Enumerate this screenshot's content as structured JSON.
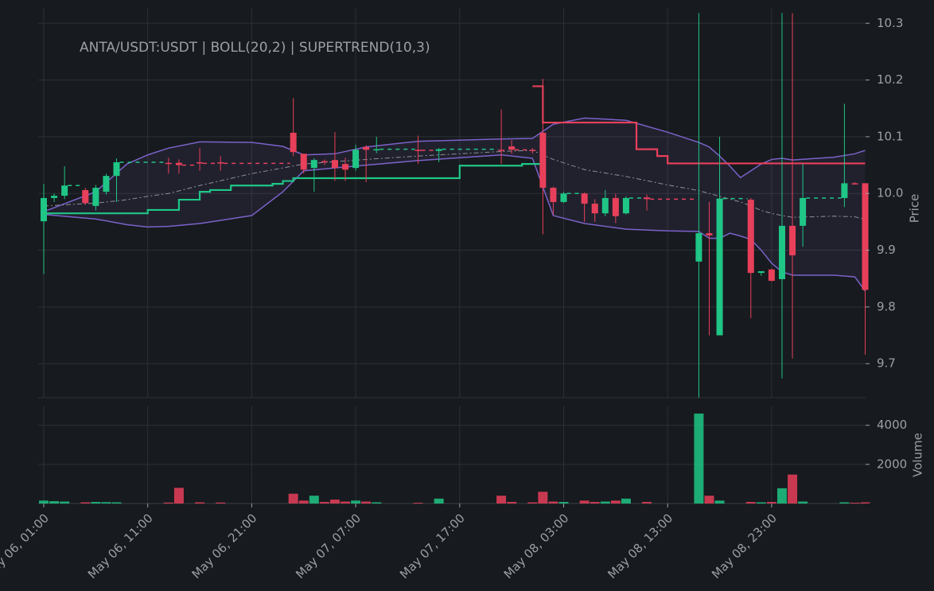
{
  "chart_data": {
    "type": "candlestick",
    "title": "ANTA/USDT:USDT | BOLL(20,2) | SUPERTREND(10,3)",
    "y_label": "Price",
    "y2_label": "Volume",
    "ylim": [
      9.64,
      10.32
    ],
    "yticks": [
      9.7,
      9.8,
      9.9,
      {
        "value": 10,
        "label": "10.0"
      },
      10.1,
      10.2,
      10.3
    ],
    "volume_ylim": [
      0,
      4800
    ],
    "volume_yticks": [
      2000,
      4000
    ],
    "xticks": [
      "May 06, 01:00",
      "May 06, 11:00",
      "May 06, 21:00",
      "May 07, 07:00",
      "May 07, 17:00",
      "May 08, 03:00",
      "May 08, 13:00",
      "May 08, 23:00"
    ],
    "grid": true,
    "up_color": "#1fc686",
    "down_color": "#e8405a",
    "candles": {
      "x": [
        "May 06, 01:00",
        "May 06, 02:00",
        "May 06, 03:00",
        "May 06, 05:00",
        "May 06, 06:00",
        "May 06, 07:00",
        "May 06, 08:00",
        "May 06, 13:00",
        "May 06, 14:00",
        "May 06, 16:00",
        "May 06, 18:00",
        "May 07, 01:00",
        "May 07, 02:00",
        "May 07, 03:00",
        "May 07, 04:00",
        "May 07, 05:00",
        "May 07, 06:00",
        "May 07, 07:00",
        "May 07, 08:00",
        "May 07, 09:00",
        "May 07, 13:00",
        "May 07, 15:00",
        "May 07, 21:00",
        "May 07, 22:00",
        "May 08, 00:00",
        "May 08, 01:00",
        "May 08, 02:00",
        "May 08, 03:00",
        "May 08, 05:00",
        "May 08, 06:00",
        "May 08, 07:00",
        "May 08, 08:00",
        "May 08, 09:00",
        "May 08, 11:00",
        "May 08, 16:00",
        "May 08, 17:00",
        "May 08, 18:00",
        "May 08, 21:00",
        "May 08, 22:00",
        "May 08, 23:00",
        "May 09, 00:00",
        "May 09, 01:00",
        "May 09, 02:00",
        "May 09, 06:00",
        "May 09, 07:00",
        "May 09, 08:00"
      ],
      "open": [
        9.951,
        9.992,
        9.996,
        10.006,
        9.978,
        10.003,
        10.031,
        10.054,
        10.054,
        10.055,
        10.055,
        10.107,
        10.07,
        10.045,
        10.057,
        10.059,
        10.052,
        10.045,
        10.082,
        10.077,
        10.077,
        10.075,
        10.077,
        10.083,
        10.077,
        10.107,
        10.01,
        9.985,
        10.0,
        9.982,
        9.965,
        9.992,
        9.965,
        9.993,
        9.88,
        9.93,
        9.75,
        9.989,
        9.86,
        9.866,
        9.849,
        9.943,
        9.943,
        9.992,
        10.018,
        10.018
      ],
      "high": [
        10.017,
        10.0,
        10.048,
        10.01,
        10.015,
        10.035,
        10.062,
        10.063,
        10.06,
        10.08,
        10.066,
        10.168,
        10.07,
        10.062,
        10.06,
        10.108,
        10.063,
        10.086,
        10.085,
        10.1,
        10.102,
        10.08,
        10.148,
        10.094,
        10.08,
        10.202,
        10.012,
        10.003,
        10.002,
        9.99,
        10.006,
        10.0,
        9.995,
        9.998,
        10.318,
        9.985,
        10.1,
        9.992,
        9.862,
        9.868,
        10.318,
        10.318,
        10.052,
        10.158,
        10.02,
        10.018
      ],
      "low": [
        9.858,
        9.985,
        9.99,
        9.98,
        9.97,
        9.998,
        9.985,
        10.035,
        10.035,
        10.04,
        10.04,
        10.066,
        10.035,
        10.003,
        10.05,
        10.022,
        10.022,
        10.04,
        10.02,
        10.071,
        10.052,
        10.055,
        10.052,
        10.07,
        10.07,
        9.928,
        9.963,
        9.983,
        9.95,
        9.95,
        9.96,
        9.948,
        9.963,
        9.97,
        9.64,
        9.75,
        9.75,
        9.78,
        9.855,
        9.845,
        9.674,
        9.709,
        9.906,
        9.976,
        10.016,
        9.716
      ],
      "close": [
        9.992,
        9.996,
        10.014,
        9.983,
        10.01,
        10.031,
        10.055,
        10.052,
        10.05,
        10.053,
        10.053,
        10.073,
        10.042,
        10.059,
        10.055,
        10.045,
        10.042,
        10.077,
        10.077,
        10.078,
        10.076,
        10.078,
        10.075,
        10.077,
        10.076,
        10.01,
        9.985,
        10.0,
        9.982,
        9.965,
        9.992,
        9.96,
        9.992,
        9.99,
        9.93,
        9.926,
        9.991,
        9.86,
        9.863,
        9.846,
        9.943,
        9.891,
        9.992,
        10.018,
        10.017,
        9.83
      ],
      "volume": [
        150,
        120,
        100,
        60,
        80,
        70,
        60,
        50,
        800,
        60,
        50,
        500,
        150,
        400,
        80,
        200,
        100,
        150,
        100,
        60,
        40,
        250,
        400,
        80,
        60,
        600,
        100,
        80,
        150,
        80,
        100,
        150,
        250,
        80,
        4600,
        400,
        150,
        80,
        60,
        80,
        780,
        1480,
        100,
        60,
        40,
        60
      ]
    },
    "overlays": [
      {
        "style": "band",
        "color": "#7b62c9",
        "x": [
          "May 06, 01:00",
          "May 06, 06:00",
          "May 06, 09:00",
          "May 06, 11:00",
          "May 06, 13:00",
          "May 06, 16:00",
          "May 06, 21:00",
          "May 07, 00:00",
          "May 07, 02:00",
          "May 07, 05:00",
          "May 07, 08:00",
          "May 07, 13:00",
          "May 07, 21:00",
          "May 08, 00:00",
          "May 08, 02:00",
          "May 08, 05:00",
          "May 08, 09:00",
          "May 08, 13:00",
          "May 08, 16:00",
          "May 08, 17:00",
          "May 08, 18:00",
          "May 08, 19:00",
          "May 08, 20:00",
          "May 08, 21:00",
          "May 08, 22:00",
          "May 08, 23:00",
          "May 09, 00:00",
          "May 09, 01:00",
          "May 09, 05:00",
          "May 09, 07:00",
          "May 09, 08:00"
        ],
        "upper": [
          9.968,
          10.003,
          10.052,
          10.068,
          10.08,
          10.091,
          10.09,
          10.083,
          10.068,
          10.07,
          10.082,
          10.092,
          10.096,
          10.097,
          10.122,
          10.133,
          10.129,
          10.108,
          10.09,
          10.082,
          10.066,
          10.048,
          10.028,
          10.04,
          10.052,
          10.06,
          10.062,
          10.059,
          10.064,
          10.07,
          10.076
        ],
        "middle": [
          9.978,
          9.983,
          9.989,
          9.995,
          10.0,
          10.014,
          10.035,
          10.045,
          10.052,
          10.056,
          10.06,
          10.066,
          10.074,
          10.076,
          10.06,
          10.042,
          10.03,
          10.015,
          10.005,
          10.0,
          9.995,
          9.99,
          9.985,
          9.978,
          9.97,
          9.965,
          9.961,
          9.958,
          9.96,
          9.959,
          9.954
        ],
        "lower": [
          9.963,
          9.955,
          9.945,
          9.941,
          9.942,
          9.947,
          9.961,
          10.003,
          10.04,
          10.045,
          10.05,
          10.058,
          10.068,
          10.062,
          9.961,
          9.947,
          9.937,
          9.934,
          9.933,
          9.921,
          9.921,
          9.93,
          9.925,
          9.919,
          9.9,
          9.877,
          9.862,
          9.856,
          9.856,
          9.853,
          9.828
        ]
      },
      {
        "style": "step",
        "color": "#1fc686",
        "x": [
          "May 06, 01:00",
          "May 06, 11:00",
          "May 06, 14:00",
          "May 06, 16:00",
          "May 06, 17:00",
          "May 06, 19:00",
          "May 06, 23:00",
          "May 07, 00:00",
          "May 07, 01:00",
          "May 07, 17:00",
          "May 07, 23:00",
          "May 08, 01:00"
        ],
        "values": [
          9.965,
          9.971,
          9.989,
          10.003,
          10.006,
          10.014,
          10.017,
          10.022,
          10.027,
          10.049,
          10.052,
          10.052
        ]
      },
      {
        "style": "step",
        "color": "#e8405a",
        "x": [
          "May 08, 00:00",
          "May 08, 01:00",
          "May 08, 10:00",
          "May 08, 12:00",
          "May 08, 13:00",
          "May 09, 08:00"
        ],
        "values": [
          10.189,
          10.125,
          10.078,
          10.066,
          10.053,
          10.053
        ]
      }
    ]
  }
}
